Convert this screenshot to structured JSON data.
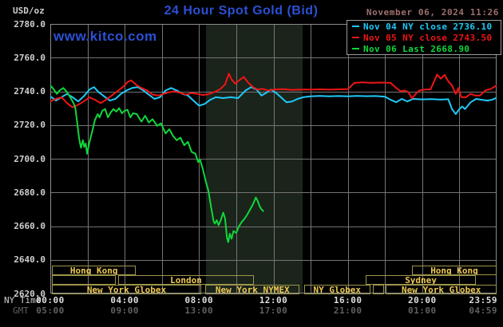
{
  "header": {
    "unit_label": "USD/oz",
    "title": "24 Hour Spot Gold (Bid)",
    "datetime": "November 06, 2024 11:26",
    "watermark": "www.kitco.com"
  },
  "legend": {
    "items": [
      {
        "label": "Nov 04 NY close",
        "value": "2736.10",
        "color": "#1ec9f7"
      },
      {
        "label": "Nov 05 NY close",
        "value": "2743.50",
        "color": "#ee1515"
      },
      {
        "label": "Nov 06 Last",
        "value": "2668.90",
        "color": "#0fd83a"
      }
    ]
  },
  "axis": {
    "ny_time_label": "NY Time",
    "gmt_label": "GMT",
    "y_ticks": [
      "2780.0",
      "2760.0",
      "2740.0",
      "2720.0",
      "2700.0",
      "2680.0",
      "2660.0",
      "2640.0",
      "2620.0"
    ],
    "x_ticks_ny": [
      "00:00",
      "04:00",
      "08:00",
      "12:00",
      "16:00",
      "20:00",
      "23:59"
    ],
    "x_ticks_gmt": [
      "05:00",
      "09:00",
      "13:00",
      "17:00",
      "21:00",
      "01:00",
      "04:59"
    ],
    "x_tick_hours": [
      0,
      4,
      8,
      12,
      16,
      20,
      24
    ]
  },
  "sessions": {
    "rows": [
      {
        "row": 1,
        "segments": [
          {
            "label": "Hong Kong",
            "start": 0.1,
            "end": 4.6
          },
          {
            "label": "Hong Kong",
            "start": 19.45,
            "end": 24
          }
        ]
      },
      {
        "row": 2,
        "segments": [
          {
            "label": "",
            "start": 0.1,
            "end": 3.5
          },
          {
            "label": "London",
            "start": 3.65,
            "end": 10.95
          },
          {
            "label": "Sydney",
            "start": 16.95,
            "end": 22.9
          }
        ]
      },
      {
        "row": 3,
        "segments": [
          {
            "label": "New York Globex",
            "start": 0.1,
            "end": 8.1
          },
          {
            "label": "New York NYMEX",
            "start": 8.35,
            "end": 13.4
          },
          {
            "label": "NY Globex",
            "start": 13.65,
            "end": 17.2
          },
          {
            "label": "",
            "start": 17.35,
            "end": 17.95
          },
          {
            "label": "New York Globex",
            "start": 18.05,
            "end": 24
          }
        ]
      }
    ]
  },
  "colors": {
    "background": "#000000",
    "grid": "#747474",
    "plot_border": "#8c8c8c",
    "shade": "#1b241b",
    "title_blue": "#2b50d4",
    "date_text": "#9e6f6f",
    "axis_text": "#cfcfcf",
    "gmt_text": "#606060",
    "session_border": "#9d954a",
    "session_text": "#ecc954"
  },
  "chart_data": {
    "type": "line",
    "title": "24 Hour Spot Gold (Bid)",
    "xlabel": "NY Time (hours 00:00-23:59)",
    "ylabel": "USD/oz",
    "ylim": [
      2620,
      2780
    ],
    "xlim_hours": [
      0,
      24
    ],
    "grid": true,
    "grid_x_step_hours": 2,
    "grid_y_step": 20,
    "legend_position": "top-right",
    "shaded_region_hours": {
      "start": 8.37,
      "end": 13.57
    },
    "series": [
      {
        "name": "Nov 04 NY close",
        "close": 2736.1,
        "color": "#1ec9f7",
        "points": [
          [
            0,
            2737
          ],
          [
            0.3,
            2734.5
          ],
          [
            0.6,
            2736.5
          ],
          [
            0.9,
            2738.5
          ],
          [
            1.2,
            2736.5
          ],
          [
            1.5,
            2734
          ],
          [
            1.8,
            2737
          ],
          [
            2.1,
            2741
          ],
          [
            2.35,
            2742.5
          ],
          [
            2.6,
            2739.5
          ],
          [
            2.9,
            2737
          ],
          [
            3.2,
            2734.5
          ],
          [
            3.5,
            2735.5
          ],
          [
            3.8,
            2738.5
          ],
          [
            4.1,
            2740.5
          ],
          [
            4.4,
            2742
          ],
          [
            4.7,
            2742.5
          ],
          [
            5.0,
            2740.5
          ],
          [
            5.3,
            2738
          ],
          [
            5.6,
            2735.5
          ],
          [
            5.9,
            2736.5
          ],
          [
            6.2,
            2740.5
          ],
          [
            6.5,
            2742
          ],
          [
            6.8,
            2740.5
          ],
          [
            7.1,
            2738.5
          ],
          [
            7.4,
            2737.5
          ],
          [
            7.7,
            2734.5
          ],
          [
            8.0,
            2731.5
          ],
          [
            8.3,
            2732.5
          ],
          [
            8.6,
            2735
          ],
          [
            8.9,
            2736.5
          ],
          [
            9.3,
            2736
          ],
          [
            9.7,
            2736.5
          ],
          [
            10.1,
            2736
          ],
          [
            10.5,
            2740.5
          ],
          [
            10.8,
            2742.5
          ],
          [
            11.1,
            2741
          ],
          [
            11.35,
            2737.5
          ],
          [
            11.6,
            2739
          ],
          [
            11.85,
            2741
          ],
          [
            12.1,
            2739.5
          ],
          [
            12.4,
            2736.5
          ],
          [
            12.7,
            2733.5
          ],
          [
            13.0,
            2734
          ],
          [
            13.3,
            2735.5
          ],
          [
            13.6,
            2736.5
          ],
          [
            14.0,
            2737
          ],
          [
            14.5,
            2737.3
          ],
          [
            15.0,
            2737
          ],
          [
            15.5,
            2737.2
          ],
          [
            16.0,
            2737
          ],
          [
            16.5,
            2737.3
          ],
          [
            17.0,
            2737.1
          ],
          [
            17.5,
            2737.2
          ],
          [
            18.0,
            2736.8
          ],
          [
            18.3,
            2735
          ],
          [
            18.6,
            2733.5
          ],
          [
            18.9,
            2735.5
          ],
          [
            19.2,
            2734
          ],
          [
            19.5,
            2735.5
          ],
          [
            20.0,
            2735.2
          ],
          [
            20.5,
            2735.4
          ],
          [
            21.0,
            2735.1
          ],
          [
            21.4,
            2735.3
          ],
          [
            21.6,
            2729.5
          ],
          [
            21.8,
            2726.5
          ],
          [
            22.0,
            2729.5
          ],
          [
            22.15,
            2731
          ],
          [
            22.3,
            2729.5
          ],
          [
            22.6,
            2733.5
          ],
          [
            22.9,
            2735.5
          ],
          [
            23.2,
            2735
          ],
          [
            23.5,
            2734.5
          ],
          [
            23.75,
            2735
          ],
          [
            24,
            2736.1
          ]
        ]
      },
      {
        "name": "Nov 05 NY close",
        "close": 2743.5,
        "color": "#ee1515",
        "points": [
          [
            0,
            2734
          ],
          [
            0.3,
            2735.5
          ],
          [
            0.6,
            2736.5
          ],
          [
            0.9,
            2733
          ],
          [
            1.2,
            2730.5
          ],
          [
            1.5,
            2732
          ],
          [
            1.8,
            2734
          ],
          [
            2.1,
            2736.5
          ],
          [
            2.4,
            2735
          ],
          [
            2.7,
            2733
          ],
          [
            3.0,
            2735
          ],
          [
            3.3,
            2737.5
          ],
          [
            3.6,
            2740
          ],
          [
            3.9,
            2742.5
          ],
          [
            4.15,
            2745.5
          ],
          [
            4.35,
            2746.5
          ],
          [
            4.6,
            2744
          ],
          [
            4.9,
            2742
          ],
          [
            5.2,
            2740.5
          ],
          [
            5.5,
            2738
          ],
          [
            5.8,
            2737.5
          ],
          [
            6.1,
            2738.5
          ],
          [
            6.4,
            2739.5
          ],
          [
            6.7,
            2740
          ],
          [
            7.0,
            2739
          ],
          [
            7.3,
            2738
          ],
          [
            7.6,
            2739
          ],
          [
            7.9,
            2738.5
          ],
          [
            8.2,
            2737.8
          ],
          [
            8.5,
            2738.3
          ],
          [
            8.8,
            2739.5
          ],
          [
            9.1,
            2741
          ],
          [
            9.4,
            2744
          ],
          [
            9.6,
            2750.5
          ],
          [
            9.75,
            2747
          ],
          [
            9.95,
            2744.5
          ],
          [
            10.15,
            2746.5
          ],
          [
            10.4,
            2748.5
          ],
          [
            10.65,
            2745
          ],
          [
            10.9,
            2742.5
          ],
          [
            11.15,
            2741
          ],
          [
            11.4,
            2741.5
          ],
          [
            11.7,
            2740.5
          ],
          [
            12.0,
            2741
          ],
          [
            12.5,
            2741.3
          ],
          [
            13.0,
            2740.8
          ],
          [
            13.5,
            2741.1
          ],
          [
            14.0,
            2741
          ],
          [
            14.5,
            2741.2
          ],
          [
            15.0,
            2741
          ],
          [
            15.5,
            2741.2
          ],
          [
            16.0,
            2741.3
          ],
          [
            16.35,
            2745
          ],
          [
            16.8,
            2745.3
          ],
          [
            17.3,
            2745
          ],
          [
            17.8,
            2745.2
          ],
          [
            18.3,
            2745
          ],
          [
            18.6,
            2742
          ],
          [
            18.85,
            2740
          ],
          [
            19.05,
            2740.5
          ],
          [
            19.25,
            2739.5
          ],
          [
            19.45,
            2735.8
          ],
          [
            19.65,
            2738.5
          ],
          [
            19.85,
            2740.5
          ],
          [
            20.1,
            2741
          ],
          [
            20.45,
            2741.2
          ],
          [
            20.8,
            2750
          ],
          [
            21.0,
            2747.5
          ],
          [
            21.2,
            2749.8
          ],
          [
            21.4,
            2746
          ],
          [
            21.6,
            2743.5
          ],
          [
            21.8,
            2738.5
          ],
          [
            21.95,
            2742
          ],
          [
            22.1,
            2736.5
          ],
          [
            22.35,
            2736.5
          ],
          [
            22.6,
            2738.5
          ],
          [
            22.85,
            2737.5
          ],
          [
            23.1,
            2737.5
          ],
          [
            23.4,
            2740.5
          ],
          [
            23.7,
            2741.5
          ],
          [
            24,
            2743.5
          ]
        ]
      },
      {
        "name": "Nov 06 Last",
        "last": 2668.9,
        "color": "#0fd83a",
        "points": [
          [
            0,
            2743.5
          ],
          [
            0.2,
            2741
          ],
          [
            0.35,
            2738.5
          ],
          [
            0.5,
            2740.5
          ],
          [
            0.7,
            2742
          ],
          [
            0.9,
            2739.5
          ],
          [
            1.1,
            2736
          ],
          [
            1.25,
            2733
          ],
          [
            1.35,
            2730
          ],
          [
            1.45,
            2721
          ],
          [
            1.55,
            2712
          ],
          [
            1.65,
            2706.5
          ],
          [
            1.75,
            2711
          ],
          [
            1.82,
            2707
          ],
          [
            1.9,
            2709
          ],
          [
            1.98,
            2703
          ],
          [
            2.1,
            2709.5
          ],
          [
            2.25,
            2716
          ],
          [
            2.4,
            2723
          ],
          [
            2.55,
            2726.5
          ],
          [
            2.65,
            2724.5
          ],
          [
            2.8,
            2728.5
          ],
          [
            2.95,
            2729.5
          ],
          [
            3.1,
            2724.5
          ],
          [
            3.25,
            2727.5
          ],
          [
            3.4,
            2729.5
          ],
          [
            3.55,
            2728
          ],
          [
            3.7,
            2730
          ],
          [
            3.85,
            2727
          ],
          [
            4.0,
            2728.5
          ],
          [
            4.15,
            2729
          ],
          [
            4.3,
            2724.5
          ],
          [
            4.45,
            2727
          ],
          [
            4.65,
            2726.5
          ],
          [
            4.9,
            2722
          ],
          [
            5.1,
            2725.5
          ],
          [
            5.3,
            2721.5
          ],
          [
            5.5,
            2723.5
          ],
          [
            5.75,
            2719.5
          ],
          [
            5.95,
            2721
          ],
          [
            6.2,
            2715
          ],
          [
            6.4,
            2717.5
          ],
          [
            6.6,
            2713.5
          ],
          [
            6.8,
            2711
          ],
          [
            7.0,
            2712.5
          ],
          [
            7.2,
            2708
          ],
          [
            7.4,
            2710
          ],
          [
            7.6,
            2704
          ],
          [
            7.8,
            2703
          ],
          [
            7.95,
            2698
          ],
          [
            8.05,
            2699.5
          ],
          [
            8.2,
            2694
          ],
          [
            8.35,
            2687
          ],
          [
            8.5,
            2681
          ],
          [
            8.65,
            2671
          ],
          [
            8.78,
            2663
          ],
          [
            8.85,
            2661.5
          ],
          [
            8.95,
            2663.5
          ],
          [
            9.05,
            2660.5
          ],
          [
            9.15,
            2663
          ],
          [
            9.3,
            2668
          ],
          [
            9.4,
            2664.5
          ],
          [
            9.5,
            2653
          ],
          [
            9.57,
            2650.5
          ],
          [
            9.65,
            2655.5
          ],
          [
            9.75,
            2652.5
          ],
          [
            9.85,
            2657
          ],
          [
            10.0,
            2656
          ],
          [
            10.15,
            2660
          ],
          [
            10.3,
            2662.5
          ],
          [
            10.45,
            2664.5
          ],
          [
            10.6,
            2667
          ],
          [
            10.75,
            2670
          ],
          [
            10.9,
            2673
          ],
          [
            11.05,
            2677
          ],
          [
            11.15,
            2675
          ],
          [
            11.25,
            2672
          ],
          [
            11.35,
            2670
          ],
          [
            11.45,
            2668.9
          ]
        ]
      }
    ]
  }
}
